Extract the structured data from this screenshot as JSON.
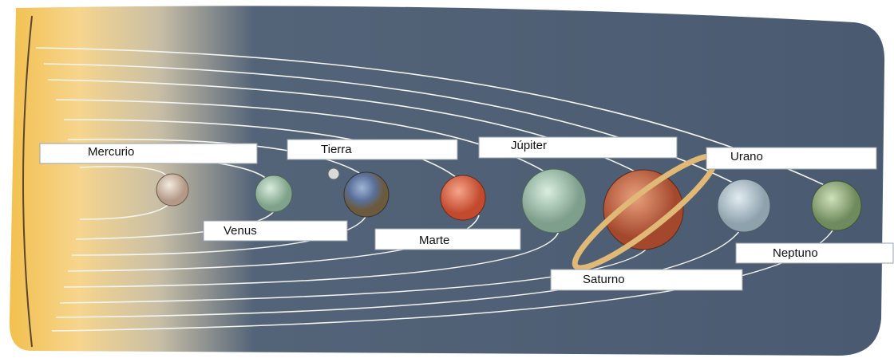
{
  "labels": [
    "Mercurio",
    "Venus",
    "Tierra",
    "Marte",
    "Júpiter",
    "Saturno",
    "Urano",
    "Neptuno"
  ]
}
